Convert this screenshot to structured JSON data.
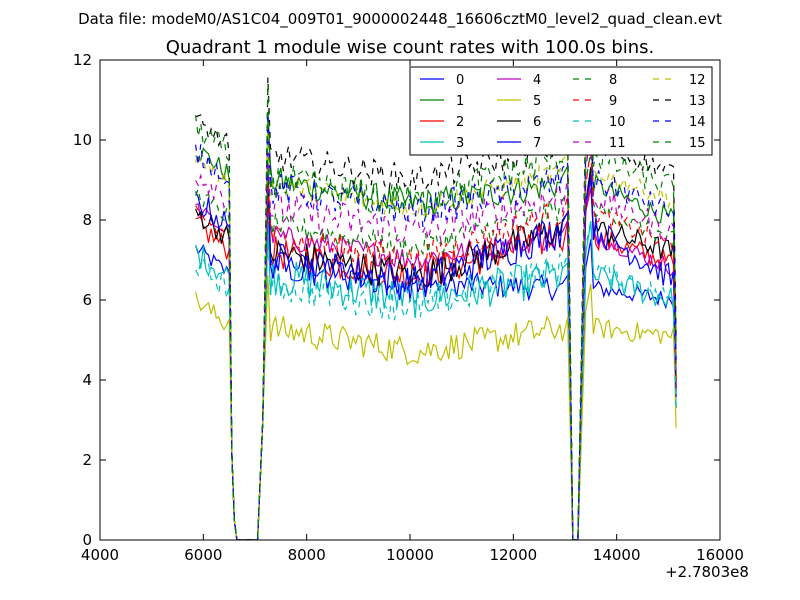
{
  "suptitle": "Data file: modeM0/AS1C04_009T01_9000002448_16606cztM0_level2_quad_clean.evt",
  "chart_data": {
    "type": "line",
    "title": "Quadrant 1 module wise count rates with 100.0s bins.",
    "xlabel": "",
    "ylabel": "",
    "x_offset_label": "+2.7803e8",
    "xlim": [
      4000,
      16000
    ],
    "ylim": [
      0,
      12
    ],
    "xticks": [
      4000,
      6000,
      8000,
      10000,
      12000,
      14000,
      16000
    ],
    "yticks": [
      0,
      2,
      4,
      6,
      8,
      10,
      12
    ],
    "grid": false,
    "legend_position": "top-right",
    "legend_columns": 4,
    "segments": [
      {
        "from": 5850,
        "to": 6500
      },
      {
        "from": 6500,
        "to": 7250,
        "kind": "drop"
      },
      {
        "from": 7250,
        "to": 13100
      },
      {
        "from": 13100,
        "to": 13500,
        "kind": "drop"
      },
      {
        "from": 13500,
        "to": 15150
      },
      {
        "from": 15150,
        "to": 15200,
        "kind": "end"
      }
    ],
    "series": [
      {
        "name": "0",
        "color": "#0000ff",
        "dash": "solid",
        "levels": [
          7.3,
          7.0,
          6.3,
          6.0
        ]
      },
      {
        "name": "1",
        "color": "#008000",
        "dash": "solid",
        "levels": [
          9.8,
          9.0,
          8.9,
          8.0
        ]
      },
      {
        "name": "2",
        "color": "#ff0000",
        "dash": "solid",
        "levels": [
          7.9,
          7.2,
          7.6,
          6.9
        ]
      },
      {
        "name": "3",
        "color": "#00bfbf",
        "dash": "solid",
        "levels": [
          7.2,
          6.6,
          6.6,
          6.0
        ]
      },
      {
        "name": "4",
        "color": "#bf00bf",
        "dash": "solid",
        "levels": [
          8.3,
          7.6,
          7.6,
          6.8
        ]
      },
      {
        "name": "5",
        "color": "#bfbf00",
        "dash": "solid",
        "levels": [
          6.0,
          5.3,
          5.3,
          5.1
        ]
      },
      {
        "name": "6",
        "color": "#000000",
        "dash": "solid",
        "levels": [
          8.2,
          7.2,
          7.8,
          7.2
        ]
      },
      {
        "name": "7",
        "color": "#0000ff",
        "dash": "solid",
        "levels": [
          8.5,
          7.0,
          7.8,
          6.5
        ]
      },
      {
        "name": "8",
        "color": "#008000",
        "dash": "dashed",
        "levels": [
          8.7,
          7.9,
          8.3,
          7.5
        ]
      },
      {
        "name": "9",
        "color": "#ff0000",
        "dash": "dashed",
        "levels": [
          8.2,
          7.6,
          8.2,
          7.3
        ]
      },
      {
        "name": "10",
        "color": "#00bfbf",
        "dash": "dashed",
        "levels": [
          6.9,
          6.4,
          6.8,
          6.0
        ]
      },
      {
        "name": "11",
        "color": "#bf00bf",
        "dash": "dashed",
        "levels": [
          9.2,
          8.3,
          8.6,
          7.7
        ]
      },
      {
        "name": "12",
        "color": "#bfbf00",
        "dash": "dashed",
        "levels": [
          9.6,
          8.9,
          9.2,
          8.5
        ]
      },
      {
        "name": "13",
        "color": "#000000",
        "dash": "dashed",
        "levels": [
          10.5,
          9.6,
          9.9,
          9.2
        ]
      },
      {
        "name": "14",
        "color": "#0000ff",
        "dash": "dashed",
        "levels": [
          9.7,
          8.8,
          9.0,
          8.2
        ]
      },
      {
        "name": "15",
        "color": "#008000",
        "dash": "dashed",
        "levels": [
          10.3,
          9.0,
          9.6,
          8.8
        ]
      }
    ]
  }
}
